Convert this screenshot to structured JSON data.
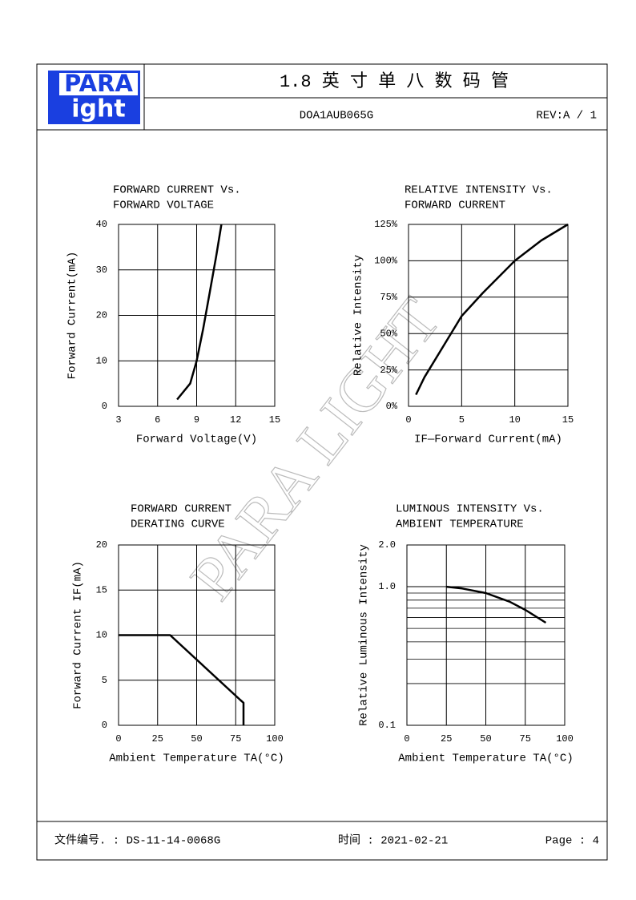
{
  "header": {
    "logo_top": "PARA",
    "logo_bottom": "ight",
    "title": "1.8 英 寸 单 八 数 码 管",
    "part_no": "DOA1AUB065G",
    "rev": "REV:A / 1"
  },
  "footer": {
    "doc_no": "文件编号. : DS-11-14-0068G",
    "date": "时间 : 2021-02-21",
    "page": "Page : 4"
  },
  "watermark": "PARA LIGHT",
  "chart_data": [
    {
      "type": "line",
      "title": [
        "FORWARD CURRENT Vs.",
        "FORWARD VOLTAGE"
      ],
      "xlabel": "Forward Voltage(V)",
      "ylabel": "Forward Current(mA)",
      "x": [
        7.5,
        8.5,
        9,
        9.5,
        10,
        10.5,
        10.9
      ],
      "values": [
        1.5,
        5,
        10,
        17,
        25,
        33,
        40
      ],
      "color": "#000000",
      "xlim": [
        3,
        15
      ],
      "xticks": [
        3,
        6,
        9,
        12,
        15
      ],
      "ylim": [
        0,
        40
      ],
      "yticks": [
        0,
        10,
        20,
        30,
        40
      ],
      "grid": true
    },
    {
      "type": "line",
      "title": [
        "RELATIVE INTENSITY Vs.",
        "FORWARD CURRENT"
      ],
      "xlabel": "IF—Forward Current(mA)",
      "ylabel": "Relative Intensity",
      "x": [
        0.7,
        1.5,
        3,
        5,
        7,
        10,
        12.5,
        15
      ],
      "values": [
        8,
        20,
        38,
        62,
        78,
        100,
        114,
        125
      ],
      "color": "#000000",
      "xlim": [
        0,
        15
      ],
      "xticks": [
        0,
        5,
        10,
        15
      ],
      "ylim": [
        0,
        125
      ],
      "yticks": [
        {
          "value": 0,
          "label": "0%"
        },
        {
          "value": 25,
          "label": "25%"
        },
        {
          "value": 50,
          "label": "50%"
        },
        {
          "value": 75,
          "label": "75%"
        },
        {
          "value": 100,
          "label": "100%"
        },
        {
          "value": 125,
          "label": "125%"
        }
      ],
      "grid": true
    },
    {
      "type": "line",
      "title": [
        "FORWARD CURRENT",
        "DERATING CURVE"
      ],
      "xlabel": "Ambient Temperature TA(°C)",
      "ylabel": "Forward Current IF(mA)",
      "x": [
        0,
        33,
        78,
        80,
        80
      ],
      "values": [
        10,
        10,
        2.8,
        2.5,
        0
      ],
      "color": "#000000",
      "xlim": [
        0,
        100
      ],
      "xticks": [
        0,
        25,
        50,
        75,
        100
      ],
      "ylim": [
        0,
        20
      ],
      "yticks": [
        0,
        5,
        10,
        15,
        20
      ],
      "grid": true
    },
    {
      "type": "line",
      "title": [
        "LUMINOUS INTENSITY Vs.",
        "AMBIENT TEMPERATURE"
      ],
      "xlabel": "Ambient Temperature TA(°C)",
      "ylabel": "Relative Luminous Intensity",
      "x": [
        25,
        35,
        50,
        65,
        75,
        88
      ],
      "values": [
        1.0,
        0.97,
        0.9,
        0.78,
        0.68,
        0.55
      ],
      "color": "#000000",
      "xlim": [
        0,
        100
      ],
      "xticks": [
        0,
        25,
        50,
        75,
        100
      ],
      "ylim": [
        0.1,
        2.0
      ],
      "ylog": true,
      "yticks": [
        0.1,
        {
          "value": 1.0,
          "label": "1.0"
        },
        {
          "value": 2.0,
          "label": "2.0"
        }
      ],
      "minor_yticks": [
        0.2,
        0.3,
        0.4,
        0.5,
        0.6,
        0.7,
        0.8,
        0.9
      ],
      "grid": true
    }
  ]
}
